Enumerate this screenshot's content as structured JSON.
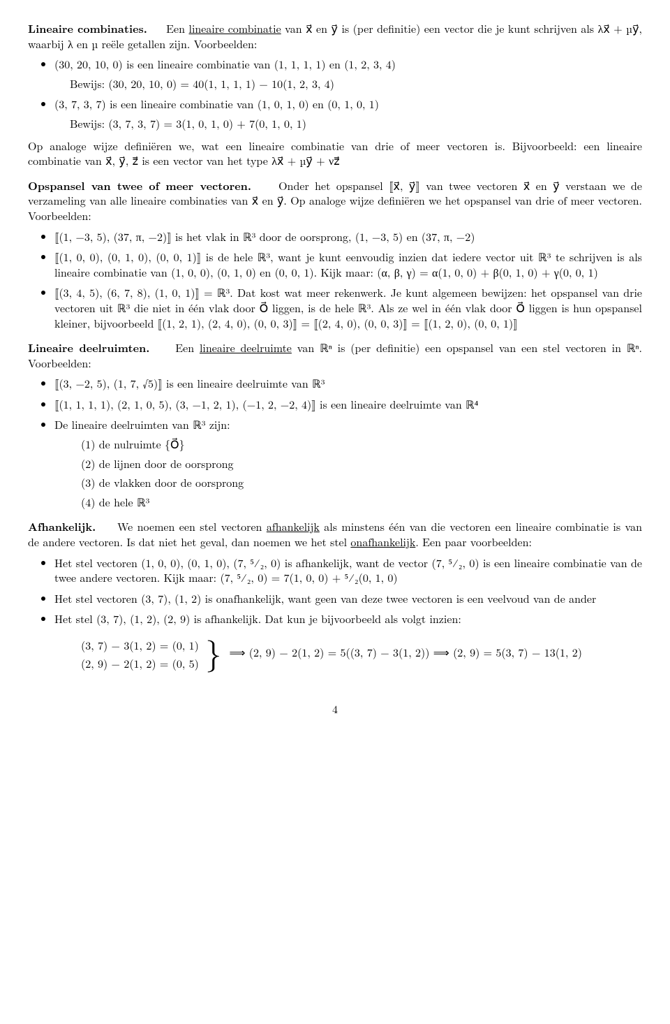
{
  "s1": {
    "runin": "Lineaire combinaties.",
    "intro": "Een ",
    "term": "lineaire combinatie",
    "rest": " van x⃗ en y⃗ is (per definitie) een vector die je kunt schrijven als λx⃗ + µy⃗, waarbij λ en µ reële getallen zijn. Voorbeelden:",
    "b1a": "(30, 20, 10, 0) is een lineaire combinatie van (1, 1, 1, 1) en (1, 2, 3, 4)",
    "b1proof": "Bewijs:  (30, 20, 10, 0) = 40(1, 1, 1, 1) − 10(1, 2, 3, 4)",
    "b2a": "(3, 7, 3, 7) is een lineaire combinatie van (1, 0, 1, 0) en (0, 1, 0, 1)",
    "b2proof": "Bewijs:  (3, 7, 3, 7) = 3(1, 0, 1, 0) + 7(0, 1, 0, 1)",
    "after": "Op analoge wijze definiëren we, wat een lineaire combinatie van drie of meer vectoren is. Bijvoorbeeld: een lineaire combinatie van x⃗, y⃗, z⃗ is een vector van het type λx⃗ + µy⃗ + νz⃗"
  },
  "s2": {
    "runin": "Opspansel van twee of meer vectoren.",
    "intro": "Onder het opspansel ⟦x⃗, y⃗⟧ van twee vectoren x⃗ en y⃗ verstaan we de verzameling van alle lineaire combinaties van x⃗ en y⃗. Op analoge wijze definiëren we het opspansel van drie of meer vectoren. Voorbeelden:",
    "b1": "⟦(1, −3, 5), (37, π, −2)⟧ is het vlak in ℝ³ door de oorsprong, (1, −3, 5) en (37, π, −2)",
    "b2": "⟦(1, 0, 0), (0, 1, 0), (0, 0, 1)⟧ is de hele ℝ³, want je kunt eenvoudig inzien dat iedere vector uit ℝ³ te schrijven is als lineaire combinatie van (1, 0, 0), (0, 1, 0) en (0, 0, 1). Kijk maar: (α, β, γ) = α(1, 0, 0) + β(0, 1, 0) + γ(0, 0, 1)",
    "b3": "⟦(3, 4, 5), (6, 7, 8), (1, 0, 1)⟧ = ℝ³. Dat kost wat meer rekenwerk. Je kunt algemeen bewijzen: het opspansel van drie vectoren uit ℝ³ die niet in één vlak door O⃗ liggen, is de hele ℝ³. Als ze wel in één vlak door O⃗ liggen is hun opspansel kleiner, bijvoorbeeld ⟦(1, 2, 1), (2, 4, 0), (0, 0, 3)⟧ = ⟦(2, 4, 0), (0, 0, 3)⟧ = ⟦(1, 2, 0), (0, 0, 1)⟧"
  },
  "s3": {
    "runin": "Lineaire deelruimten.",
    "intro1": "Een ",
    "term": "lineaire deelruimte",
    "intro2": " van ℝⁿ is (per definitie) een opspansel van een stel vectoren in ℝⁿ. Voorbeelden:",
    "b1": "⟦(3, −2, 5), (1, 7, √5)⟧ is een lineaire deelruimte van ℝ³",
    "b2": "⟦(1, 1, 1, 1), (2, 1, 0, 5), (3, −1, 2, 1), (−1, 2, −2, 4)⟧ is een lineaire deelruimte van ℝ⁴",
    "b3": "De lineaire deelruimten van ℝ³ zijn:",
    "n1": "(1) de nulruimte {O⃗}",
    "n2": "(2) de lijnen door de oorsprong",
    "n3": "(3) de vlakken door de oorsprong",
    "n4": "(4) de hele ℝ³"
  },
  "s4": {
    "runin": "Afhankelijk.",
    "intro1": "We noemen een stel vectoren ",
    "term1": "afhankelijk",
    "intro2": " als minstens één van die vectoren een lineaire combinatie is van de andere vectoren. Is dat niet het geval, dan noemen we het stel ",
    "term2": "onafhankelijk",
    "intro3": ". Een paar voorbeelden:",
    "b1": "Het stel vectoren (1, 0, 0), (0, 1, 0), (7, ⁵⁄₂, 0) is afhankelijk, want de vector (7, ⁵⁄₂, 0) is een lineaire combinatie van de twee andere vectoren. Kijk maar: (7, ⁵⁄₂, 0) = 7(1, 0, 0) + ⁵⁄₂(0, 1, 0)",
    "b2": "Het stel vectoren (3, 7), (1, 2) is onafhankelijk, want geen van deze twee vectoren is een veelvoud van de ander",
    "b3": "Het stel (3, 7), (1, 2), (2, 9) is afhankelijk. Dat kun je bijvoorbeeld als volgt inzien:",
    "imp_l1": "(3, 7) − 3(1, 2) = (0, 1)",
    "imp_l2": "(2, 9) − 2(1, 2) = (0, 5)",
    "imp_r": "⟹  (2, 9) − 2(1, 2) = 5((3, 7) − 3(1, 2))  ⟹  (2, 9) = 5(3, 7) − 13(1, 2)"
  },
  "pagenum": "4"
}
